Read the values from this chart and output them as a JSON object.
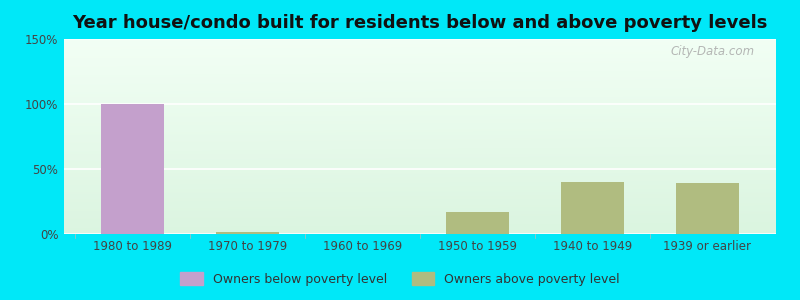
{
  "title": "Year house/condo built for residents below and above poverty levels",
  "categories": [
    "1980 to 1989",
    "1970 to 1979",
    "1960 to 1969",
    "1950 to 1959",
    "1940 to 1949",
    "1939 or earlier"
  ],
  "below_poverty": [
    100,
    0,
    0,
    0,
    0,
    0
  ],
  "above_poverty": [
    0,
    1.5,
    0,
    17,
    40,
    39
  ],
  "below_color": "#c4a0cc",
  "above_color": "#b0bc80",
  "ylim": [
    0,
    150
  ],
  "yticks": [
    0,
    50,
    100,
    150
  ],
  "ytick_labels": [
    "0%",
    "50%",
    "100%",
    "150%"
  ],
  "bg_color_top": "#eaf6e8",
  "bg_color_bottom": "#f8fef4",
  "outer_bg": "#00e8f8",
  "bar_width": 0.55,
  "legend_below_label": "Owners below poverty level",
  "legend_above_label": "Owners above poverty level",
  "watermark": "City-Data.com",
  "title_fontsize": 13,
  "tick_fontsize": 8.5
}
